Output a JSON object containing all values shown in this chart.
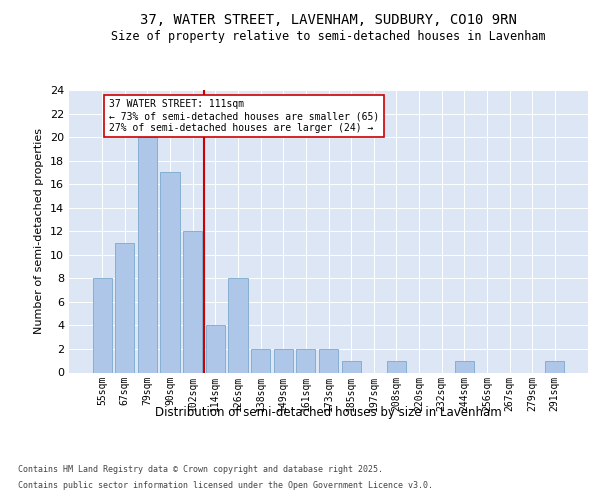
{
  "title1": "37, WATER STREET, LAVENHAM, SUDBURY, CO10 9RN",
  "title2": "Size of property relative to semi-detached houses in Lavenham",
  "xlabel": "Distribution of semi-detached houses by size in Lavenham",
  "ylabel": "Number of semi-detached properties",
  "categories": [
    "55sqm",
    "67sqm",
    "79sqm",
    "90sqm",
    "102sqm",
    "114sqm",
    "126sqm",
    "138sqm",
    "149sqm",
    "161sqm",
    "173sqm",
    "185sqm",
    "197sqm",
    "208sqm",
    "220sqm",
    "232sqm",
    "244sqm",
    "256sqm",
    "267sqm",
    "279sqm",
    "291sqm"
  ],
  "values": [
    8,
    11,
    20,
    17,
    12,
    4,
    8,
    2,
    2,
    2,
    2,
    1,
    0,
    1,
    0,
    0,
    1,
    0,
    0,
    0,
    1
  ],
  "bar_color": "#aec6e8",
  "bar_edge_color": "#7aa8cc",
  "annotation_title": "37 WATER STREET: 111sqm",
  "annotation_line1": "← 73% of semi-detached houses are smaller (65)",
  "annotation_line2": "27% of semi-detached houses are larger (24) →",
  "red_line_color": "#cc0000",
  "annotation_box_color": "#ffffff",
  "annotation_box_edge": "#cc0000",
  "footer1": "Contains HM Land Registry data © Crown copyright and database right 2025.",
  "footer2": "Contains public sector information licensed under the Open Government Licence v3.0.",
  "bg_color": "#dce6f5",
  "ylim": [
    0,
    24
  ],
  "yticks": [
    0,
    2,
    4,
    6,
    8,
    10,
    12,
    14,
    16,
    18,
    20,
    22,
    24
  ]
}
